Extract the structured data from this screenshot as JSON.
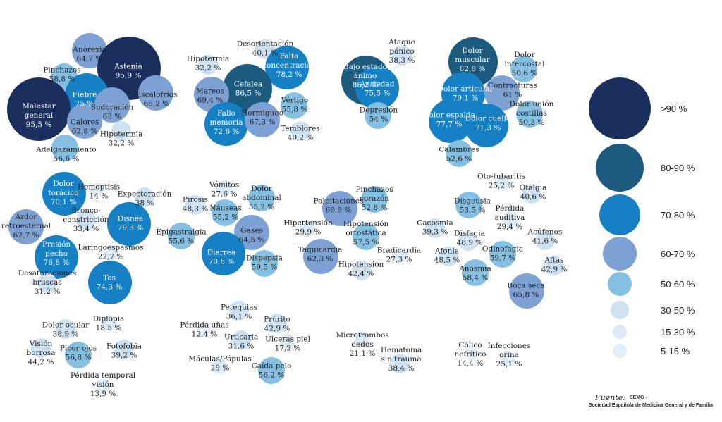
{
  "chart_data": {
    "type": "bubble",
    "colors": {
      ">90 %": "#1b2f5e",
      "80-90 %": "#1c5a7e",
      "70-80 %": "#1580c4",
      "60-70 %": "#7ea1d4",
      "50-60 %": "#85c0e3",
      "30-50 %": "#cfe2f1",
      "15-30 %": "#dceaf5",
      "5-15 %": "#e2edf7"
    },
    "legend": [
      ">90 %",
      "80-90 %",
      "70-80 %",
      "60-70 %",
      "50-60 %",
      "30-50 %",
      "15-30 %",
      "5-15 %"
    ],
    "points": [
      {
        "name": "Anorexia",
        "value": "64,7 %"
      },
      {
        "name": "Astenia",
        "value": "95,9 %"
      },
      {
        "name": "Pinchazos",
        "value": "58,8 %"
      },
      {
        "name": "Fiebre",
        "value": "75 %"
      },
      {
        "name": "Escalofríos",
        "value": "65,2 %"
      },
      {
        "name": "Malestar general",
        "value": "95,5 %"
      },
      {
        "name": "Sudoración",
        "value": "63 %"
      },
      {
        "name": "Calores",
        "value": "62,8 %"
      },
      {
        "name": "Hipotermia",
        "value": "32,2 %"
      },
      {
        "name": "Adelgazamiento",
        "value": "56,6 %"
      },
      {
        "name": "Desorientación",
        "value": "40,1 %"
      },
      {
        "name": "Hipotermia",
        "value": "32,2 %"
      },
      {
        "name": "Falta concentración",
        "value": "78,2 %"
      },
      {
        "name": "Cefalea",
        "value": "86,5 %"
      },
      {
        "name": "Mareos",
        "value": "69,4 %"
      },
      {
        "name": "Vértigo",
        "value": "55,8 %"
      },
      {
        "name": "Fallo memoria",
        "value": "72,6 %"
      },
      {
        "name": "Hormigueo",
        "value": "67,3 %"
      },
      {
        "name": "Temblores",
        "value": "40,2 %"
      },
      {
        "name": "Ataque pánico",
        "value": "38,3 %"
      },
      {
        "name": "Bajo estado ánimo",
        "value": "86,2 %"
      },
      {
        "name": "Ansiedad",
        "value": "75,5 %"
      },
      {
        "name": "Depresión",
        "value": "54 %"
      },
      {
        "name": "Dolor muscular",
        "value": "82,8 %"
      },
      {
        "name": "Dolor intercostal",
        "value": "50,6 %"
      },
      {
        "name": "Dolor articular",
        "value": "79,1 %"
      },
      {
        "name": "Contracturas",
        "value": "61 %"
      },
      {
        "name": "Dolor espalda",
        "value": "77,7 %"
      },
      {
        "name": "Dolor cuello",
        "value": "71,3 %"
      },
      {
        "name": "Dolor unión costillas",
        "value": "50,3 %"
      },
      {
        "name": "Calambres",
        "value": "52,6 %"
      },
      {
        "name": "Dolor torácico",
        "value": "70,1 %"
      },
      {
        "name": "Hemoptisis",
        "value": "14 %"
      },
      {
        "name": "Expectoración",
        "value": "38 %"
      },
      {
        "name": "Ardor retroesternal",
        "value": "62,7 %"
      },
      {
        "name": "Bronco-constricción",
        "value": "33,4 %"
      },
      {
        "name": "Disnea",
        "value": "79,3 %"
      },
      {
        "name": "Presión pecho",
        "value": "76,8 %"
      },
      {
        "name": "Laringoespasmos",
        "value": "22,7 %"
      },
      {
        "name": "Desaturaciones bruscas",
        "value": "31,2 %"
      },
      {
        "name": "Tos",
        "value": "74,3 %"
      },
      {
        "name": "Vómitos",
        "value": "27,6 %"
      },
      {
        "name": "Pirosis",
        "value": "48,3 %"
      },
      {
        "name": "Dolor abdominal",
        "value": "55,2 %"
      },
      {
        "name": "Náuseas",
        "value": "55,2 %"
      },
      {
        "name": "Epigastralgia",
        "value": "55,6 %"
      },
      {
        "name": "Gases",
        "value": "64,5 %"
      },
      {
        "name": "Diarrea",
        "value": "70,8 %"
      },
      {
        "name": "Dispepsia",
        "value": "59,5 %"
      },
      {
        "name": "Palpitaciones",
        "value": "69,9 %"
      },
      {
        "name": "Pinchazos corazón",
        "value": "52,8 %"
      },
      {
        "name": "Hipertensión",
        "value": "29,9 %"
      },
      {
        "name": "Hipotensión ortostática",
        "value": "57,5 %"
      },
      {
        "name": "Taquicardia",
        "value": "62,3 %"
      },
      {
        "name": "Bradicardia",
        "value": "27,3 %"
      },
      {
        "name": "Hipotensión",
        "value": "42,4 %"
      },
      {
        "name": "Oto-tubaritis",
        "value": "25,2 %"
      },
      {
        "name": "Otalgia",
        "value": "40,6 %"
      },
      {
        "name": "Disgeusia",
        "value": "53,5 %"
      },
      {
        "name": "Pérdida auditiva",
        "value": "29,4 %"
      },
      {
        "name": "Cacosmia",
        "value": "39,3 %"
      },
      {
        "name": "Disfagia",
        "value": "48,9 %"
      },
      {
        "name": "Acúfenos",
        "value": "41,6 %"
      },
      {
        "name": "Afonía",
        "value": "48,5 %"
      },
      {
        "name": "Odinofagia",
        "value": "59,7 %"
      },
      {
        "name": "Aftas",
        "value": "42,9 %"
      },
      {
        "name": "Anosmia",
        "value": "58,4 %"
      },
      {
        "name": "Boca seca",
        "value": "65,8 %"
      },
      {
        "name": "Dolor ocular",
        "value": "38,9 %"
      },
      {
        "name": "Diplopia",
        "value": "18,5 %"
      },
      {
        "name": "Visión borrosa",
        "value": "44,2 %"
      },
      {
        "name": "Picor ojos",
        "value": "56,8 %"
      },
      {
        "name": "Fotofobia",
        "value": "39,2 %"
      },
      {
        "name": "Pérdida temporal visión",
        "value": "13,9 %"
      },
      {
        "name": "Petequias",
        "value": "36,1 %"
      },
      {
        "name": "Pérdida uñas",
        "value": "12,4 %"
      },
      {
        "name": "Prúrito",
        "value": "42,9 %"
      },
      {
        "name": "Urticaria",
        "value": "31,6 %"
      },
      {
        "name": "Úlceras piel",
        "value": "17,2 %"
      },
      {
        "name": "Máculas/Pápulas",
        "value": "29 %"
      },
      {
        "name": "Caída pelo",
        "value": "56,2 %"
      },
      {
        "name": "Microtrombos dedos",
        "value": "21,1 %"
      },
      {
        "name": "Hematoma sin trauma",
        "value": "38,4 %"
      },
      {
        "name": "Cólico nefrítico",
        "value": "14,4 %"
      },
      {
        "name": "Infecciones orina",
        "value": "25,1 %"
      }
    ]
  },
  "source": {
    "label": "Fuente:",
    "line1": "SEMG -",
    "line2": "Sociedad Española de Medicina General y de Familia"
  }
}
